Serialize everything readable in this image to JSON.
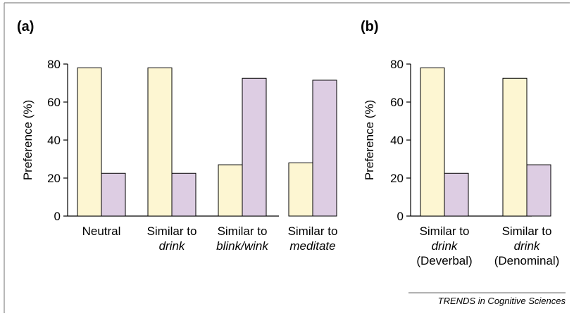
{
  "credit": "TRENDS in Cognitive Sciences",
  "colors": {
    "series_a": "#fdf6d2",
    "series_b": "#ddcde3",
    "stroke": "#000000",
    "frame": "#888888"
  },
  "chart_data": [
    {
      "type": "bar",
      "panel_label": "(a)",
      "ylabel": "Preference (%)",
      "ylim": [
        0,
        80
      ],
      "yticks": [
        0,
        20,
        40,
        60,
        80
      ],
      "grid": false,
      "categories": [
        {
          "lines": [
            {
              "text": "Neutral",
              "italic": false
            }
          ]
        },
        {
          "lines": [
            {
              "text": "Similar to",
              "italic": false
            },
            {
              "text": "drink",
              "italic": true
            }
          ]
        },
        {
          "lines": [
            {
              "text": "Similar to",
              "italic": false
            },
            {
              "text": "blink/wink",
              "italic": true
            }
          ]
        },
        {
          "lines": [
            {
              "text": "Similar to",
              "italic": false
            },
            {
              "text": "meditate",
              "italic": true
            }
          ]
        }
      ],
      "series": [
        {
          "color": "#fdf6d2",
          "values": [
            78,
            78,
            27,
            28
          ]
        },
        {
          "color": "#ddcde3",
          "values": [
            22.5,
            22.5,
            72.5,
            71.5
          ]
        }
      ]
    },
    {
      "type": "bar",
      "panel_label": "(b)",
      "ylabel": "Preference (%)",
      "ylim": [
        0,
        80
      ],
      "yticks": [
        0,
        20,
        40,
        60,
        80
      ],
      "grid": false,
      "categories": [
        {
          "lines": [
            {
              "text": "Similar to",
              "italic": false
            },
            {
              "text": "drink",
              "italic": true
            },
            {
              "text": "(Deverbal)",
              "italic": false
            }
          ]
        },
        {
          "lines": [
            {
              "text": "Similar to",
              "italic": false
            },
            {
              "text": "drink",
              "italic": true
            },
            {
              "text": "(Denominal)",
              "italic": false
            }
          ]
        }
      ],
      "series": [
        {
          "color": "#fdf6d2",
          "values": [
            78,
            72.5
          ]
        },
        {
          "color": "#ddcde3",
          "values": [
            22.5,
            27
          ]
        }
      ]
    }
  ]
}
